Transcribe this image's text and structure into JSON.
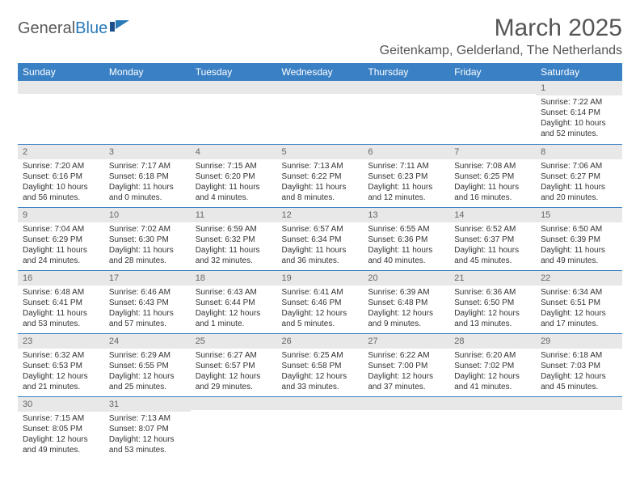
{
  "logo": {
    "text_a": "General",
    "text_b": "Blue"
  },
  "title": "March 2025",
  "location": "Geitenkamp, Gelderland, The Netherlands",
  "colors": {
    "header_bg": "#3a80c4",
    "header_fg": "#ffffff",
    "daynum_bg": "#e8e8e8",
    "border": "#3a80c4",
    "title_color": "#555555"
  },
  "day_headers": [
    "Sunday",
    "Monday",
    "Tuesday",
    "Wednesday",
    "Thursday",
    "Friday",
    "Saturday"
  ],
  "weeks": [
    [
      {
        "n": "",
        "sr": "",
        "ss": "",
        "dl": ""
      },
      {
        "n": "",
        "sr": "",
        "ss": "",
        "dl": ""
      },
      {
        "n": "",
        "sr": "",
        "ss": "",
        "dl": ""
      },
      {
        "n": "",
        "sr": "",
        "ss": "",
        "dl": ""
      },
      {
        "n": "",
        "sr": "",
        "ss": "",
        "dl": ""
      },
      {
        "n": "",
        "sr": "",
        "ss": "",
        "dl": ""
      },
      {
        "n": "1",
        "sr": "Sunrise: 7:22 AM",
        "ss": "Sunset: 6:14 PM",
        "dl": "Daylight: 10 hours and 52 minutes."
      }
    ],
    [
      {
        "n": "2",
        "sr": "Sunrise: 7:20 AM",
        "ss": "Sunset: 6:16 PM",
        "dl": "Daylight: 10 hours and 56 minutes."
      },
      {
        "n": "3",
        "sr": "Sunrise: 7:17 AM",
        "ss": "Sunset: 6:18 PM",
        "dl": "Daylight: 11 hours and 0 minutes."
      },
      {
        "n": "4",
        "sr": "Sunrise: 7:15 AM",
        "ss": "Sunset: 6:20 PM",
        "dl": "Daylight: 11 hours and 4 minutes."
      },
      {
        "n": "5",
        "sr": "Sunrise: 7:13 AM",
        "ss": "Sunset: 6:22 PM",
        "dl": "Daylight: 11 hours and 8 minutes."
      },
      {
        "n": "6",
        "sr": "Sunrise: 7:11 AM",
        "ss": "Sunset: 6:23 PM",
        "dl": "Daylight: 11 hours and 12 minutes."
      },
      {
        "n": "7",
        "sr": "Sunrise: 7:08 AM",
        "ss": "Sunset: 6:25 PM",
        "dl": "Daylight: 11 hours and 16 minutes."
      },
      {
        "n": "8",
        "sr": "Sunrise: 7:06 AM",
        "ss": "Sunset: 6:27 PM",
        "dl": "Daylight: 11 hours and 20 minutes."
      }
    ],
    [
      {
        "n": "9",
        "sr": "Sunrise: 7:04 AM",
        "ss": "Sunset: 6:29 PM",
        "dl": "Daylight: 11 hours and 24 minutes."
      },
      {
        "n": "10",
        "sr": "Sunrise: 7:02 AM",
        "ss": "Sunset: 6:30 PM",
        "dl": "Daylight: 11 hours and 28 minutes."
      },
      {
        "n": "11",
        "sr": "Sunrise: 6:59 AM",
        "ss": "Sunset: 6:32 PM",
        "dl": "Daylight: 11 hours and 32 minutes."
      },
      {
        "n": "12",
        "sr": "Sunrise: 6:57 AM",
        "ss": "Sunset: 6:34 PM",
        "dl": "Daylight: 11 hours and 36 minutes."
      },
      {
        "n": "13",
        "sr": "Sunrise: 6:55 AM",
        "ss": "Sunset: 6:36 PM",
        "dl": "Daylight: 11 hours and 40 minutes."
      },
      {
        "n": "14",
        "sr": "Sunrise: 6:52 AM",
        "ss": "Sunset: 6:37 PM",
        "dl": "Daylight: 11 hours and 45 minutes."
      },
      {
        "n": "15",
        "sr": "Sunrise: 6:50 AM",
        "ss": "Sunset: 6:39 PM",
        "dl": "Daylight: 11 hours and 49 minutes."
      }
    ],
    [
      {
        "n": "16",
        "sr": "Sunrise: 6:48 AM",
        "ss": "Sunset: 6:41 PM",
        "dl": "Daylight: 11 hours and 53 minutes."
      },
      {
        "n": "17",
        "sr": "Sunrise: 6:46 AM",
        "ss": "Sunset: 6:43 PM",
        "dl": "Daylight: 11 hours and 57 minutes."
      },
      {
        "n": "18",
        "sr": "Sunrise: 6:43 AM",
        "ss": "Sunset: 6:44 PM",
        "dl": "Daylight: 12 hours and 1 minute."
      },
      {
        "n": "19",
        "sr": "Sunrise: 6:41 AM",
        "ss": "Sunset: 6:46 PM",
        "dl": "Daylight: 12 hours and 5 minutes."
      },
      {
        "n": "20",
        "sr": "Sunrise: 6:39 AM",
        "ss": "Sunset: 6:48 PM",
        "dl": "Daylight: 12 hours and 9 minutes."
      },
      {
        "n": "21",
        "sr": "Sunrise: 6:36 AM",
        "ss": "Sunset: 6:50 PM",
        "dl": "Daylight: 12 hours and 13 minutes."
      },
      {
        "n": "22",
        "sr": "Sunrise: 6:34 AM",
        "ss": "Sunset: 6:51 PM",
        "dl": "Daylight: 12 hours and 17 minutes."
      }
    ],
    [
      {
        "n": "23",
        "sr": "Sunrise: 6:32 AM",
        "ss": "Sunset: 6:53 PM",
        "dl": "Daylight: 12 hours and 21 minutes."
      },
      {
        "n": "24",
        "sr": "Sunrise: 6:29 AM",
        "ss": "Sunset: 6:55 PM",
        "dl": "Daylight: 12 hours and 25 minutes."
      },
      {
        "n": "25",
        "sr": "Sunrise: 6:27 AM",
        "ss": "Sunset: 6:57 PM",
        "dl": "Daylight: 12 hours and 29 minutes."
      },
      {
        "n": "26",
        "sr": "Sunrise: 6:25 AM",
        "ss": "Sunset: 6:58 PM",
        "dl": "Daylight: 12 hours and 33 minutes."
      },
      {
        "n": "27",
        "sr": "Sunrise: 6:22 AM",
        "ss": "Sunset: 7:00 PM",
        "dl": "Daylight: 12 hours and 37 minutes."
      },
      {
        "n": "28",
        "sr": "Sunrise: 6:20 AM",
        "ss": "Sunset: 7:02 PM",
        "dl": "Daylight: 12 hours and 41 minutes."
      },
      {
        "n": "29",
        "sr": "Sunrise: 6:18 AM",
        "ss": "Sunset: 7:03 PM",
        "dl": "Daylight: 12 hours and 45 minutes."
      }
    ],
    [
      {
        "n": "30",
        "sr": "Sunrise: 7:15 AM",
        "ss": "Sunset: 8:05 PM",
        "dl": "Daylight: 12 hours and 49 minutes."
      },
      {
        "n": "31",
        "sr": "Sunrise: 7:13 AM",
        "ss": "Sunset: 8:07 PM",
        "dl": "Daylight: 12 hours and 53 minutes."
      },
      {
        "n": "",
        "sr": "",
        "ss": "",
        "dl": ""
      },
      {
        "n": "",
        "sr": "",
        "ss": "",
        "dl": ""
      },
      {
        "n": "",
        "sr": "",
        "ss": "",
        "dl": ""
      },
      {
        "n": "",
        "sr": "",
        "ss": "",
        "dl": ""
      },
      {
        "n": "",
        "sr": "",
        "ss": "",
        "dl": ""
      }
    ]
  ]
}
